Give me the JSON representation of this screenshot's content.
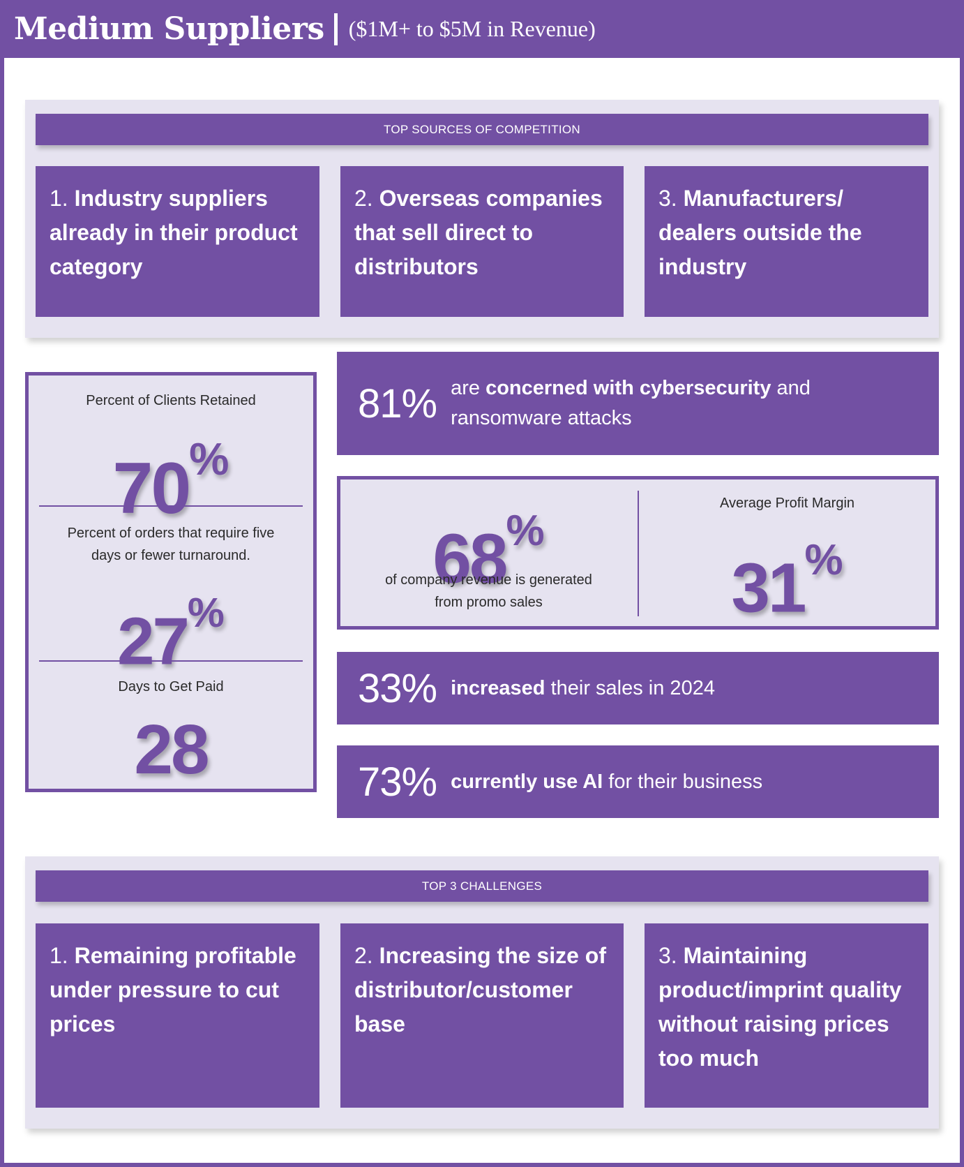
{
  "header": {
    "title": "Medium Suppliers",
    "subtitle": "($1M+ to $5M in Revenue)"
  },
  "competition": {
    "heading": "TOP SOURCES OF COMPETITION",
    "items": [
      {
        "num": "1.",
        "text": "Industry suppliers already in their product category"
      },
      {
        "num": "2.",
        "text": "Overseas companies that sell direct to distributors"
      },
      {
        "num": "3.",
        "text": "Manufacturers/ dealers outside the industry"
      }
    ]
  },
  "left_stats": {
    "clients_label": "Percent of Clients Retained",
    "clients_value": "70",
    "clients_unit": "%",
    "orders_label": "Percent of orders that require five days or fewer turnaround.",
    "orders_value": "27",
    "orders_unit": "%",
    "paid_label": "Days to Get Paid",
    "paid_value": "28"
  },
  "cyber": {
    "value": "81%",
    "pre": "are",
    "bold": "concerned with cybersecurity",
    "post": "and ransomware attacks"
  },
  "revenue": {
    "value": "68",
    "unit": "%",
    "label": "of company revenue is generated from promo sales",
    "margin_label": "Average Profit Margin",
    "margin_value": "31",
    "margin_unit": "%"
  },
  "sales": {
    "value": "33%",
    "bold": "increased",
    "post": "their sales in 2024"
  },
  "ai": {
    "value": "73%",
    "bold": "currently use AI",
    "post": "for their business"
  },
  "challenges": {
    "heading": "TOP 3 CHALLENGES",
    "items": [
      {
        "num": "1.",
        "text": "Remaining profitable under pressure to cut prices"
      },
      {
        "num": "2.",
        "text": "Increasing the size of distributor/customer base"
      },
      {
        "num": "3.",
        "text": "Maintaining product/imprint quality without raising prices too much"
      }
    ]
  },
  "colors": {
    "accent": "#7250a3",
    "panel": "#e6e3f0"
  }
}
